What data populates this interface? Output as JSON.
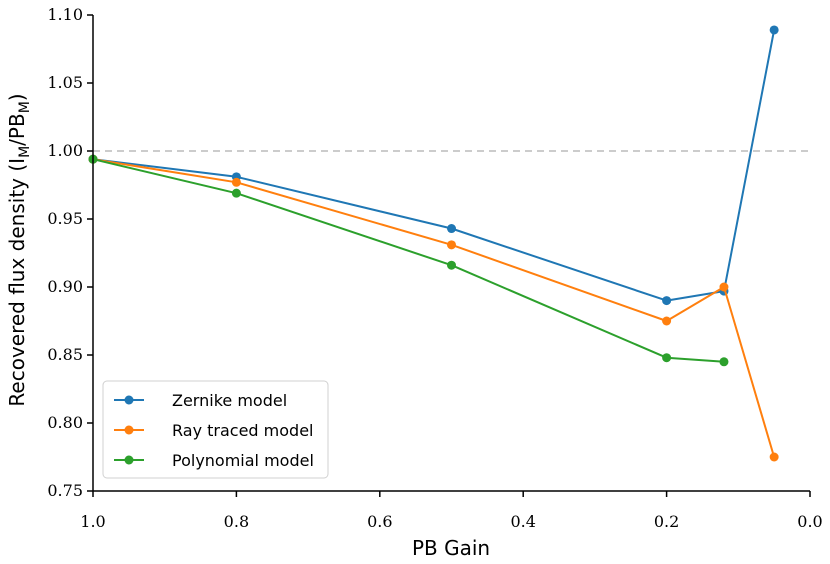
{
  "chart_data": {
    "type": "line",
    "title": "",
    "xlabel": "PB Gain",
    "ylabel_prefix": "Recovered flux density (",
    "ylabel_I": "I",
    "ylabel_sub1": "M",
    "ylabel_mid": "/PB",
    "ylabel_sub2": "M",
    "ylabel_suffix": ")",
    "xlim": [
      1.0,
      0.0
    ],
    "ylim": [
      0.75,
      1.1
    ],
    "x_ticks": [
      1.0,
      0.8,
      0.6,
      0.4,
      0.2,
      0.0
    ],
    "x_tick_labels": [
      "1.0",
      "0.8",
      "0.6",
      "0.4",
      "0.2",
      "0.0"
    ],
    "y_ticks": [
      0.75,
      0.8,
      0.85,
      0.9,
      0.95,
      1.0,
      1.05,
      1.1
    ],
    "y_tick_labels": [
      "0.75",
      "0.80",
      "0.85",
      "0.90",
      "0.95",
      "1.00",
      "1.05",
      "1.10"
    ],
    "reference_line": {
      "y": 1.0,
      "color": "#bbbbbb",
      "style": "dashed"
    },
    "grid": false,
    "legend_position": "lower-left",
    "series": [
      {
        "name": "Zernike model",
        "color": "#1f77b4",
        "x": [
          1.0,
          0.8,
          0.5,
          0.2,
          0.12,
          0.05
        ],
        "y": [
          0.994,
          0.981,
          0.943,
          0.89,
          0.897,
          1.089
        ]
      },
      {
        "name": "Ray traced model",
        "color": "#ff7f0e",
        "x": [
          1.0,
          0.8,
          0.5,
          0.2,
          0.12,
          0.05
        ],
        "y": [
          0.994,
          0.977,
          0.931,
          0.875,
          0.9,
          0.775
        ]
      },
      {
        "name": "Polynomial model",
        "color": "#2ca02c",
        "x": [
          1.0,
          0.8,
          0.5,
          0.2,
          0.12
        ],
        "y": [
          0.994,
          0.969,
          0.916,
          0.848,
          0.845
        ]
      }
    ]
  }
}
